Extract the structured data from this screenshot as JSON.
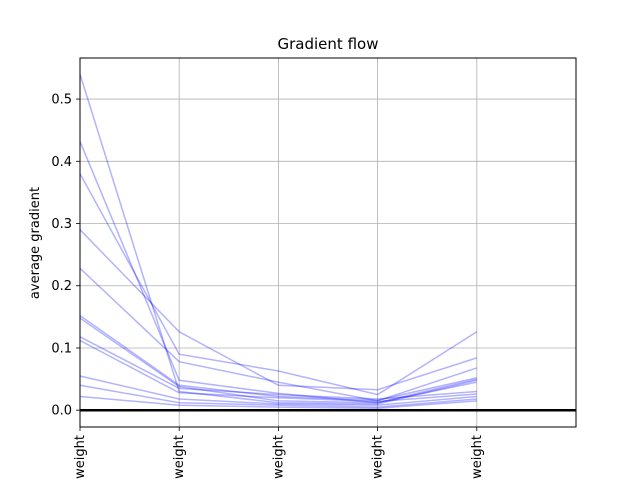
{
  "chart_data": {
    "type": "line",
    "title": "Gradient flow",
    "xlabel": "",
    "ylabel": "average gradient",
    "categories": [
      "weight",
      "weight",
      "weight",
      "weight",
      "weight"
    ],
    "xlim": [
      0,
      5
    ],
    "ylim": [
      -0.027,
      0.566
    ],
    "yticks": [
      "0.0",
      "0.1",
      "0.2",
      "0.3",
      "0.4",
      "0.5"
    ],
    "grid": true,
    "zero_line": 0,
    "line_color": "#0000ff",
    "line_alpha": 0.3,
    "series": [
      {
        "values": [
          0.54,
          0.03,
          0.012,
          0.01,
          0.048
        ]
      },
      {
        "values": [
          0.432,
          0.048,
          0.027,
          0.012,
          0.05
        ]
      },
      {
        "values": [
          0.38,
          0.09,
          0.063,
          0.025,
          0.126
        ]
      },
      {
        "values": [
          0.29,
          0.126,
          0.04,
          0.033,
          0.084
        ]
      },
      {
        "values": [
          0.228,
          0.078,
          0.045,
          0.015,
          0.068
        ]
      },
      {
        "values": [
          0.152,
          0.04,
          0.022,
          0.016,
          0.052
        ]
      },
      {
        "values": [
          0.148,
          0.038,
          0.015,
          0.012,
          0.045
        ]
      },
      {
        "values": [
          0.118,
          0.035,
          0.025,
          0.018,
          0.03
        ]
      },
      {
        "values": [
          0.112,
          0.028,
          0.02,
          0.014,
          0.026
        ]
      },
      {
        "values": [
          0.055,
          0.018,
          0.01,
          0.008,
          0.022
        ]
      },
      {
        "values": [
          0.04,
          0.012,
          0.008,
          0.005,
          0.018
        ]
      },
      {
        "values": [
          0.022,
          0.008,
          0.005,
          0.003,
          0.015
        ]
      }
    ]
  }
}
